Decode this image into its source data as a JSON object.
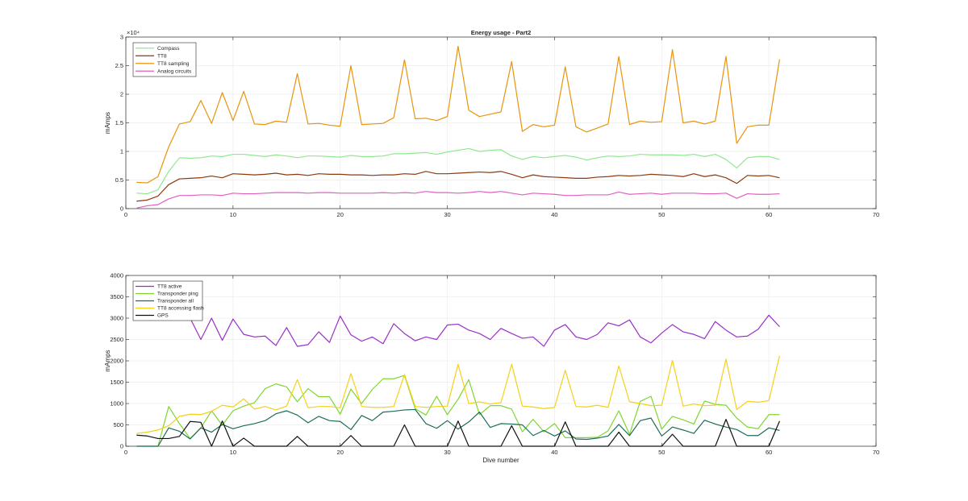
{
  "chart_data": [
    {
      "type": "line",
      "title": "Energy usage - Part2",
      "xlabel": "",
      "ylabel": "mAmps",
      "y_exponent_label": "×10⁴",
      "xlim": [
        0,
        70
      ],
      "ylim": [
        0,
        30000
      ],
      "xticks": [
        0,
        10,
        20,
        30,
        40,
        50,
        60,
        70
      ],
      "yticks": [
        0,
        5000,
        10000,
        15000,
        20000,
        25000,
        30000
      ],
      "ytick_labels": [
        "0",
        "0.5",
        "1",
        "1.5",
        "2",
        "2.5",
        "3"
      ],
      "grid": true,
      "legend_position": "top-left",
      "x": [
        1,
        2,
        3,
        4,
        5,
        6,
        7,
        8,
        9,
        10,
        11,
        12,
        13,
        14,
        15,
        16,
        17,
        18,
        19,
        20,
        21,
        22,
        23,
        24,
        25,
        26,
        27,
        28,
        29,
        30,
        31,
        32,
        33,
        34,
        35,
        36,
        37,
        38,
        39,
        40,
        41,
        42,
        43,
        44,
        45,
        46,
        47,
        48,
        49,
        50,
        51,
        52,
        53,
        54,
        55,
        56,
        57,
        58,
        59,
        60,
        61
      ],
      "series": [
        {
          "name": "Compass",
          "color": "#8fe88f",
          "values": [
            2700,
            2600,
            3300,
            6500,
            8900,
            8800,
            8900,
            9200,
            9100,
            9500,
            9500,
            9300,
            9100,
            9400,
            9200,
            8900,
            9200,
            9200,
            9100,
            9000,
            9300,
            9100,
            9100,
            9200,
            9600,
            9600,
            9700,
            9800,
            9500,
            9900,
            10200,
            10500,
            10000,
            10200,
            10300,
            9200,
            8600,
            9100,
            8900,
            9100,
            9300,
            9000,
            8500,
            8900,
            9200,
            9100,
            9200,
            9500,
            9400,
            9400,
            9400,
            9300,
            9500,
            9100,
            9500,
            8600,
            7100,
            8900,
            9100,
            9100,
            8600
          ]
        },
        {
          "name": "TT8",
          "color": "#8b3a0e",
          "values": [
            1300,
            1500,
            2200,
            4200,
            5200,
            5300,
            5400,
            5700,
            5400,
            6100,
            6000,
            5900,
            6000,
            6200,
            5900,
            6000,
            5800,
            6100,
            6000,
            6000,
            5900,
            5900,
            5800,
            5900,
            5900,
            6100,
            6000,
            6500,
            6100,
            6100,
            6200,
            6300,
            6400,
            6300,
            6500,
            6000,
            5400,
            5900,
            5600,
            5500,
            5400,
            5300,
            5300,
            5500,
            5600,
            5800,
            5700,
            5800,
            6000,
            5900,
            5800,
            5600,
            6100,
            5600,
            5900,
            5400,
            4400,
            5800,
            5700,
            5800,
            5400
          ]
        },
        {
          "name": "TT8 sampling",
          "color": "#e8940e",
          "values": [
            4600,
            4500,
            5600,
            10800,
            14800,
            15200,
            18900,
            14900,
            20300,
            15400,
            20500,
            14800,
            14700,
            15300,
            15100,
            23600,
            14800,
            14900,
            14600,
            14400,
            25000,
            14700,
            14800,
            14900,
            15900,
            26000,
            15700,
            15800,
            15400,
            16100,
            28400,
            17200,
            16100,
            16500,
            16900,
            25700,
            13500,
            14700,
            14300,
            14600,
            24800,
            14300,
            13400,
            14100,
            14800,
            26600,
            14700,
            15300,
            15100,
            15200,
            27800,
            15000,
            15300,
            14800,
            15300,
            26600,
            11400,
            14300,
            14600,
            14600,
            26100
          ]
        },
        {
          "name": "Analog circuits",
          "color": "#e060c0",
          "values": [
            100,
            500,
            700,
            1700,
            2300,
            2300,
            2400,
            2400,
            2300,
            2700,
            2600,
            2600,
            2700,
            2800,
            2800,
            2800,
            2700,
            2800,
            2800,
            2700,
            2700,
            2700,
            2700,
            2800,
            2700,
            2800,
            2700,
            3000,
            2800,
            2800,
            2700,
            2800,
            3000,
            2800,
            3000,
            2700,
            2400,
            2700,
            2600,
            2500,
            2300,
            2300,
            2400,
            2400,
            2400,
            2900,
            2500,
            2600,
            2700,
            2500,
            2700,
            2700,
            2700,
            2600,
            2600,
            2700,
            1800,
            2600,
            2500,
            2500,
            2600
          ]
        }
      ]
    },
    {
      "type": "line",
      "title": "",
      "xlabel": "Dive number",
      "ylabel": "mAmps",
      "xlim": [
        0,
        70
      ],
      "ylim": [
        0,
        4000
      ],
      "xticks": [
        0,
        10,
        20,
        30,
        40,
        50,
        60,
        70
      ],
      "yticks": [
        0,
        500,
        1000,
        1500,
        2000,
        2500,
        3000,
        3500,
        4000
      ],
      "ytick_labels": [
        "0",
        "500",
        "1000",
        "1500",
        "2000",
        "2500",
        "3000",
        "3500",
        "4000"
      ],
      "grid": true,
      "legend_position": "top-left",
      "x": [
        1,
        2,
        3,
        4,
        5,
        6,
        7,
        8,
        9,
        10,
        11,
        12,
        13,
        14,
        15,
        16,
        17,
        18,
        19,
        20,
        21,
        22,
        23,
        24,
        25,
        26,
        27,
        28,
        29,
        30,
        31,
        32,
        33,
        34,
        35,
        36,
        37,
        38,
        39,
        40,
        41,
        42,
        43,
        44,
        45,
        46,
        47,
        48,
        49,
        50,
        51,
        52,
        53,
        54,
        55,
        56,
        57,
        58,
        59,
        60,
        61
      ],
      "series": [
        {
          "name": "TT8 active",
          "color": "#9a2fc8",
          "values": [
            null,
            null,
            null,
            null,
            null,
            3000,
            2500,
            3000,
            2480,
            2980,
            2620,
            2560,
            2580,
            2360,
            2780,
            2340,
            2380,
            2680,
            2430,
            3050,
            2610,
            2460,
            2560,
            2400,
            2870,
            2640,
            2470,
            2560,
            2500,
            2840,
            2860,
            2720,
            2640,
            2500,
            2760,
            2640,
            2530,
            2560,
            2340,
            2720,
            2850,
            2560,
            2500,
            2620,
            2890,
            2820,
            2960,
            2560,
            2420,
            2650,
            2850,
            2680,
            2620,
            2520,
            2920,
            2720,
            2560,
            2580,
            2740,
            3070,
            2800
          ]
        },
        {
          "name": "Transponder ping",
          "color": "#7fd62f",
          "values": [
            0,
            0,
            0,
            930,
            530,
            180,
            430,
            830,
            490,
            830,
            940,
            1020,
            1350,
            1460,
            1390,
            1040,
            1350,
            1160,
            1160,
            750,
            1340,
            1000,
            1330,
            1580,
            1580,
            1660,
            880,
            730,
            1170,
            740,
            1100,
            1560,
            740,
            950,
            950,
            870,
            340,
            630,
            340,
            530,
            200,
            200,
            200,
            210,
            360,
            830,
            280,
            1050,
            1170,
            400,
            700,
            620,
            520,
            1060,
            980,
            960,
            660,
            450,
            410,
            740,
            740
          ]
        },
        {
          "name": "Transponder all",
          "color": "#1e6b5a",
          "values": [
            0,
            0,
            0,
            430,
            350,
            170,
            430,
            330,
            510,
            410,
            480,
            530,
            600,
            760,
            830,
            730,
            550,
            700,
            600,
            580,
            390,
            720,
            600,
            800,
            820,
            850,
            860,
            530,
            420,
            600,
            400,
            570,
            800,
            440,
            530,
            520,
            500,
            250,
            370,
            240,
            360,
            170,
            160,
            190,
            240,
            510,
            250,
            600,
            660,
            240,
            450,
            380,
            300,
            610,
            520,
            450,
            390,
            250,
            250,
            430,
            370
          ]
        },
        {
          "name": "TT8 accessing flash",
          "color": "#f5d018",
          "values": [
            300,
            330,
            380,
            480,
            700,
            750,
            740,
            820,
            960,
            920,
            1110,
            870,
            930,
            850,
            940,
            1560,
            900,
            930,
            930,
            900,
            1700,
            930,
            910,
            910,
            930,
            1680,
            930,
            910,
            930,
            940,
            1920,
            1000,
            1040,
            990,
            1020,
            1920,
            940,
            920,
            880,
            910,
            1780,
            930,
            920,
            960,
            910,
            1880,
            1040,
            1000,
            950,
            960,
            2010,
            940,
            990,
            950,
            960,
            2040,
            860,
            1050,
            1030,
            1070,
            2120
          ]
        },
        {
          "name": "GPS",
          "color": "#111111",
          "values": [
            260,
            240,
            180,
            180,
            230,
            580,
            560,
            0,
            590,
            0,
            190,
            0,
            0,
            0,
            0,
            230,
            0,
            0,
            0,
            0,
            250,
            0,
            0,
            0,
            0,
            500,
            0,
            0,
            0,
            0,
            590,
            0,
            0,
            0,
            0,
            480,
            0,
            0,
            0,
            0,
            570,
            0,
            0,
            0,
            0,
            330,
            0,
            0,
            0,
            0,
            280,
            0,
            0,
            0,
            0,
            630,
            0,
            0,
            0,
            0,
            590
          ]
        }
      ]
    }
  ]
}
